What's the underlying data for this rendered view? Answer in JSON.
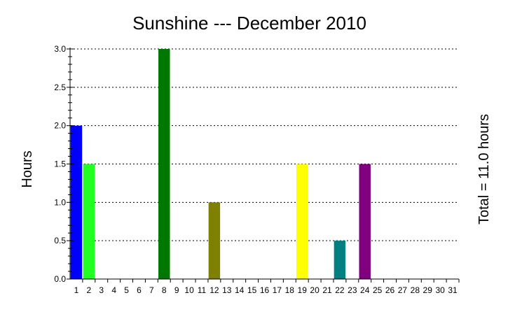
{
  "chart_data": {
    "type": "bar",
    "title": "Sunshine --- December 2010",
    "ylabel": "Hours",
    "right_label": "Total =  11.0 hours",
    "xlabel": "",
    "categories": [
      "1",
      "2",
      "3",
      "4",
      "5",
      "6",
      "7",
      "8",
      "9",
      "10",
      "11",
      "12",
      "13",
      "14",
      "15",
      "16",
      "17",
      "18",
      "19",
      "20",
      "21",
      "22",
      "23",
      "24",
      "25",
      "26",
      "27",
      "28",
      "29",
      "30",
      "31"
    ],
    "values": [
      2.0,
      1.5,
      0,
      0,
      0,
      0,
      0,
      3.0,
      0,
      0,
      0,
      1.0,
      0,
      0,
      0,
      0,
      0,
      0,
      1.5,
      0,
      0,
      0.5,
      0,
      1.5,
      0,
      0,
      0,
      0,
      0,
      0,
      0
    ],
    "bar_colors": {
      "1": "#0000ff",
      "2": "#22ff22",
      "8": "#007700",
      "12": "#808000",
      "19": "#ffff00",
      "22": "#008080",
      "24": "#800080"
    },
    "ylim": [
      0,
      3.0
    ],
    "yticks": [
      "0.0",
      "0.5",
      "1.0",
      "1.5",
      "2.0",
      "2.5",
      "3.0"
    ],
    "grid": "horizontal-dotted"
  }
}
